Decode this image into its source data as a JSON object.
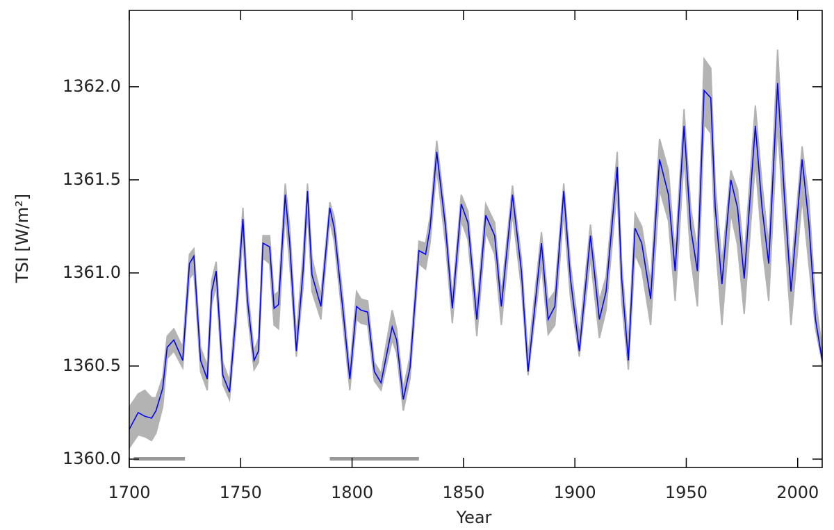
{
  "chart_data": {
    "type": "line",
    "x_label": "Year",
    "y_label": "TSI [W/m²]",
    "xlim": [
      1700,
      2011
    ],
    "ylim": [
      1359.955,
      1362.41
    ],
    "xticks": [
      1700,
      1750,
      1800,
      1850,
      1900,
      1950,
      2000
    ],
    "yticks": [
      {
        "value": 1360,
        "label": "1360.0"
      },
      1360.5,
      {
        "value": 1361,
        "label": "1361.0"
      },
      1361.5,
      {
        "value": 1362,
        "label": "1362.0"
      }
    ],
    "x": [
      1700,
      1704,
      1707,
      1710,
      1712,
      1715,
      1717,
      1720,
      1724,
      1727,
      1729,
      1732,
      1735,
      1737,
      1739,
      1742,
      1745,
      1748,
      1751,
      1753,
      1756,
      1758,
      1760,
      1763,
      1765,
      1767,
      1770,
      1772,
      1775,
      1778,
      1780,
      1782,
      1786,
      1790,
      1792,
      1796,
      1799,
      1802,
      1804,
      1807,
      1810,
      1813,
      1818,
      1820,
      1823,
      1826,
      1830,
      1833,
      1835,
      1838,
      1842,
      1845,
      1849,
      1852,
      1856,
      1860,
      1864,
      1867,
      1872,
      1876,
      1879,
      1885,
      1888,
      1891,
      1895,
      1898,
      1902,
      1907,
      1911,
      1914,
      1919,
      1921,
      1924,
      1927,
      1930,
      1934,
      1938,
      1942,
      1945,
      1949,
      1952,
      1955,
      1958,
      1961,
      1963,
      1966,
      1970,
      1973,
      1976,
      1981,
      1984,
      1987,
      1991,
      1994,
      1997,
      2002,
      2005,
      2008,
      2011
    ],
    "line": {
      "color": "#0000ff",
      "values": [
        1360.16,
        1360.25,
        1360.23,
        1360.22,
        1360.26,
        1360.38,
        1360.6,
        1360.64,
        1360.53,
        1361.05,
        1361.09,
        1360.53,
        1360.43,
        1360.9,
        1361.01,
        1360.45,
        1360.36,
        1360.79,
        1361.29,
        1360.86,
        1360.53,
        1360.58,
        1361.16,
        1361.14,
        1360.81,
        1360.83,
        1361.42,
        1361.16,
        1360.58,
        1361.01,
        1361.44,
        1360.99,
        1360.82,
        1361.35,
        1361.24,
        1360.79,
        1360.43,
        1360.82,
        1360.8,
        1360.79,
        1360.47,
        1360.41,
        1360.71,
        1360.64,
        1360.32,
        1360.49,
        1361.12,
        1361.1,
        1361.24,
        1361.65,
        1361.24,
        1360.81,
        1361.37,
        1361.27,
        1360.75,
        1361.31,
        1361.2,
        1360.82,
        1361.42,
        1361.01,
        1360.47,
        1361.16,
        1360.75,
        1360.82,
        1361.44,
        1360.97,
        1360.58,
        1361.2,
        1360.75,
        1360.9,
        1361.57,
        1360.97,
        1360.53,
        1361.24,
        1361.16,
        1360.86,
        1361.61,
        1361.42,
        1361.01,
        1361.79,
        1361.24,
        1361.01,
        1361.98,
        1361.94,
        1361.35,
        1360.94,
        1361.5,
        1361.35,
        1360.97,
        1361.79,
        1361.35,
        1361.05,
        1362.02,
        1361.42,
        1360.9,
        1361.61,
        1361.27,
        1360.75,
        1360.53
      ]
    },
    "band": {
      "color": "#b3b3b3",
      "lower": [
        1360.06,
        1360.13,
        1360.12,
        1360.1,
        1360.14,
        1360.28,
        1360.54,
        1360.58,
        1360.49,
        1360.97,
        1361.0,
        1360.47,
        1360.37,
        1360.83,
        1360.93,
        1360.4,
        1360.32,
        1360.72,
        1361.2,
        1360.79,
        1360.48,
        1360.52,
        1361.08,
        1361.05,
        1360.72,
        1360.7,
        1361.32,
        1361.05,
        1360.55,
        1360.92,
        1361.33,
        1360.9,
        1360.75,
        1361.28,
        1361.17,
        1360.72,
        1360.37,
        1360.75,
        1360.73,
        1360.72,
        1360.42,
        1360.37,
        1360.64,
        1360.57,
        1360.26,
        1360.43,
        1361.05,
        1361.02,
        1361.16,
        1361.56,
        1361.15,
        1360.73,
        1361.28,
        1361.18,
        1360.66,
        1361.22,
        1361.1,
        1360.72,
        1361.32,
        1360.92,
        1360.45,
        1361.05,
        1360.67,
        1360.72,
        1361.33,
        1360.87,
        1360.55,
        1361.08,
        1360.65,
        1360.8,
        1361.45,
        1360.85,
        1360.48,
        1361.1,
        1361.02,
        1360.72,
        1361.45,
        1361.28,
        1360.85,
        1361.62,
        1361.08,
        1360.82,
        1361.8,
        1361.75,
        1361.18,
        1360.72,
        1361.32,
        1361.15,
        1360.78,
        1361.6,
        1361.15,
        1360.85,
        1361.8,
        1361.22,
        1360.72,
        1361.4,
        1361.05,
        1360.7,
        1360.52
      ],
      "upper": [
        1360.28,
        1360.35,
        1360.37,
        1360.33,
        1360.33,
        1360.44,
        1360.66,
        1360.7,
        1360.6,
        1361.1,
        1361.13,
        1360.6,
        1360.5,
        1360.96,
        1361.06,
        1360.52,
        1360.42,
        1360.85,
        1361.35,
        1360.93,
        1360.58,
        1360.65,
        1361.2,
        1361.2,
        1360.88,
        1360.9,
        1361.48,
        1361.25,
        1360.66,
        1361.1,
        1361.48,
        1361.08,
        1360.88,
        1361.38,
        1361.3,
        1360.86,
        1360.48,
        1360.9,
        1360.86,
        1360.85,
        1360.52,
        1360.46,
        1360.8,
        1360.7,
        1360.38,
        1360.55,
        1361.17,
        1361.16,
        1361.3,
        1361.71,
        1361.3,
        1360.87,
        1361.42,
        1361.33,
        1360.82,
        1361.37,
        1361.27,
        1360.89,
        1361.47,
        1361.08,
        1360.55,
        1361.22,
        1360.85,
        1360.9,
        1361.48,
        1361.05,
        1360.66,
        1361.26,
        1360.85,
        1360.98,
        1361.65,
        1361.05,
        1360.62,
        1361.32,
        1361.25,
        1360.95,
        1361.72,
        1361.55,
        1361.1,
        1361.88,
        1361.35,
        1361.12,
        1362.15,
        1362.1,
        1361.48,
        1361.05,
        1361.55,
        1361.45,
        1361.08,
        1361.9,
        1361.48,
        1361.15,
        1362.2,
        1361.55,
        1361.0,
        1361.68,
        1361.4,
        1360.85,
        1360.6
      ]
    },
    "periods": [
      [
        1702,
        1725
      ],
      [
        1790,
        1830
      ]
    ],
    "periods_color": "#999999"
  }
}
